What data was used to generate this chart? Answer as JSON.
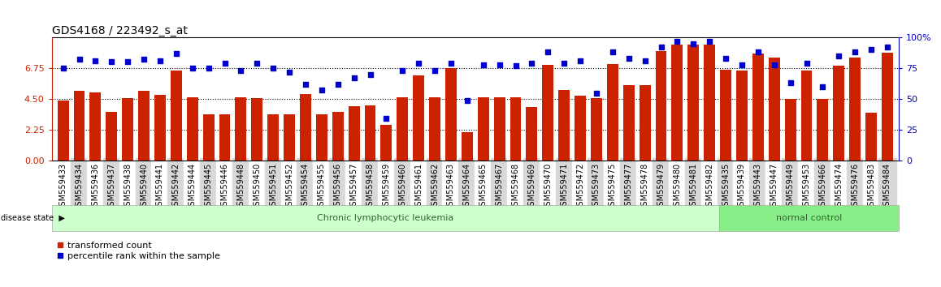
{
  "title": "GDS4168 / 223492_s_at",
  "categories": [
    "GSM559433",
    "GSM559434",
    "GSM559436",
    "GSM559437",
    "GSM559438",
    "GSM559440",
    "GSM559441",
    "GSM559442",
    "GSM559444",
    "GSM559445",
    "GSM559446",
    "GSM559448",
    "GSM559450",
    "GSM559451",
    "GSM559452",
    "GSM559454",
    "GSM559455",
    "GSM559456",
    "GSM559457",
    "GSM559458",
    "GSM559459",
    "GSM559460",
    "GSM559461",
    "GSM559462",
    "GSM559463",
    "GSM559464",
    "GSM559465",
    "GSM559467",
    "GSM559468",
    "GSM559469",
    "GSM559470",
    "GSM559471",
    "GSM559472",
    "GSM559473",
    "GSM559475",
    "GSM559477",
    "GSM559478",
    "GSM559479",
    "GSM559480",
    "GSM559481",
    "GSM559482",
    "GSM559435",
    "GSM559439",
    "GSM559443",
    "GSM559447",
    "GSM559449",
    "GSM559453",
    "GSM559466",
    "GSM559474",
    "GSM559476",
    "GSM559483",
    "GSM559484"
  ],
  "bar_values": [
    4.4,
    5.1,
    5.0,
    3.55,
    4.55,
    5.1,
    4.8,
    6.6,
    4.65,
    3.4,
    3.4,
    4.65,
    4.55,
    3.4,
    3.4,
    4.85,
    3.4,
    3.55,
    3.95,
    4.05,
    2.6,
    4.65,
    6.25,
    4.6,
    6.75,
    2.1,
    4.65,
    4.65,
    4.65,
    3.9,
    7.0,
    5.15,
    4.75,
    4.55,
    7.05,
    5.5,
    5.5,
    8.0,
    8.45,
    8.45,
    8.45,
    6.65,
    6.6,
    7.8,
    7.5,
    4.5,
    6.6,
    4.5,
    6.95,
    7.5,
    3.5,
    7.9
  ],
  "scatter_values": [
    75,
    82,
    81,
    80,
    80,
    82,
    81,
    87,
    75,
    75,
    79,
    73,
    79,
    75,
    72,
    62,
    57,
    62,
    67,
    70,
    34,
    73,
    79,
    73,
    79,
    49,
    78,
    78,
    77,
    79,
    88,
    79,
    81,
    55,
    88,
    83,
    81,
    92,
    97,
    95,
    97,
    83,
    78,
    88,
    78,
    63,
    79,
    60,
    85,
    88,
    90,
    92
  ],
  "bar_color": "#cc2200",
  "scatter_color": "#0000cc",
  "left_ylim": [
    0,
    9
  ],
  "right_ylim": [
    0,
    100
  ],
  "left_yticks": [
    0,
    2.25,
    4.5,
    6.75
  ],
  "right_yticks": [
    0,
    25,
    50,
    75,
    100
  ],
  "hlines": [
    2.25,
    4.5,
    6.75
  ],
  "disease_state_boundary": 41,
  "disease_labels": [
    "Chronic lymphocytic leukemia",
    "normal control"
  ],
  "disease_colors": [
    "#ccffcc",
    "#88ee88"
  ],
  "legend_items": [
    "transformed count",
    "percentile rank within the sample"
  ],
  "legend_colors": [
    "#cc2200",
    "#0000cc"
  ],
  "background_color": "#ffffff",
  "title_fontsize": 10,
  "tick_fontsize": 7
}
